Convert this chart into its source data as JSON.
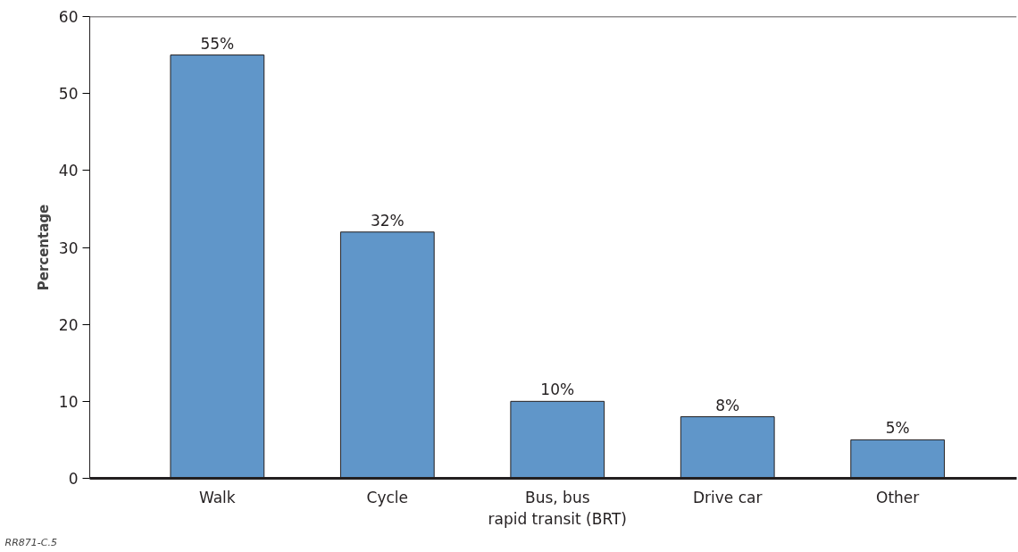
{
  "chart_data": {
    "type": "bar",
    "ylabel": "Percentage",
    "categories": [
      "Walk",
      "Cycle",
      "Bus, bus\nrapid transit (BRT)",
      "Drive car",
      "Other"
    ],
    "values": [
      55,
      32,
      10,
      8,
      5
    ],
    "value_labels": [
      "55%",
      "32%",
      "10%",
      "8%",
      "5%"
    ],
    "color": "#6096c9",
    "ylim": [
      0,
      60
    ],
    "yticks": [
      0,
      10,
      20,
      30,
      40,
      50,
      60
    ],
    "grid": false,
    "annotations": [
      "RR871-C.5"
    ]
  }
}
